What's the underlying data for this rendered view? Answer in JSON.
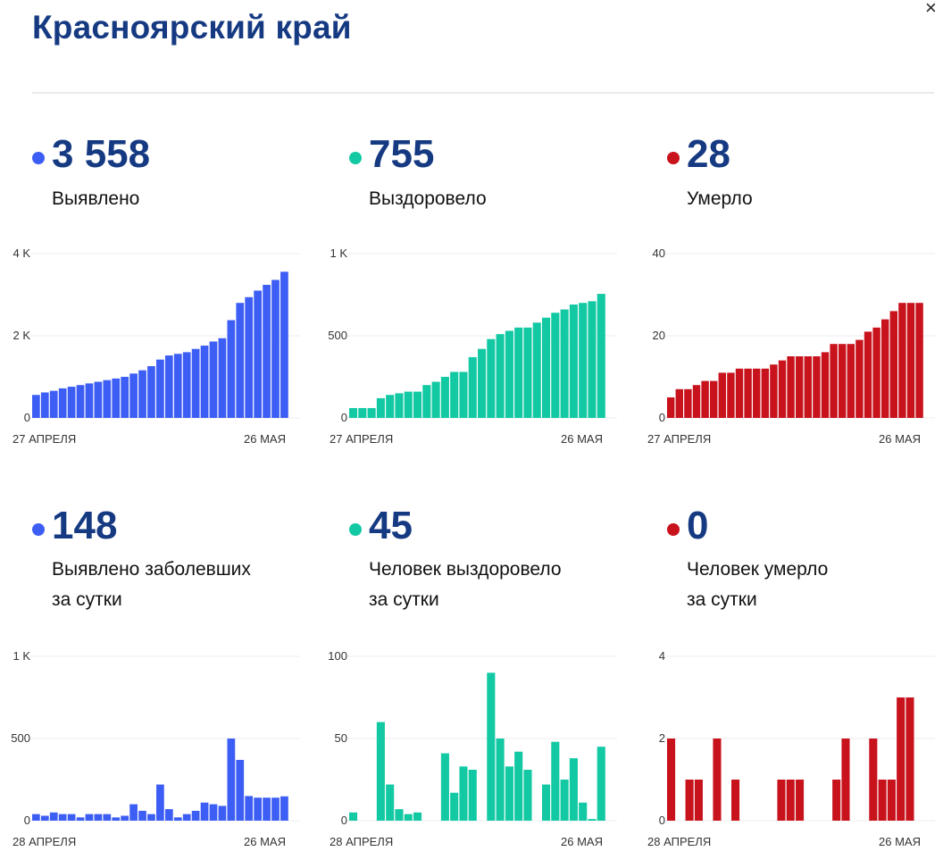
{
  "page": {
    "title": "Красноярский край",
    "close_glyph": "×"
  },
  "colors": {
    "blue": "#3d5ef5",
    "teal": "#12c9a4",
    "red": "#c8121c",
    "title": "#163a82"
  },
  "cards": [
    {
      "value": "3 558",
      "label": "Выявлено",
      "color": "#3d5ef5"
    },
    {
      "value": "755",
      "label": "Выздоровело",
      "color": "#12c9a4"
    },
    {
      "value": "28",
      "label": "Умерло",
      "color": "#c8121c"
    },
    {
      "value": "148",
      "label": "Выявлено заболевших\nза сутки",
      "color": "#3d5ef5"
    },
    {
      "value": "45",
      "label": "Человек выздоровело\nза сутки",
      "color": "#12c9a4"
    },
    {
      "value": "0",
      "label": "Человек умерло\nза сутки",
      "color": "#c8121c"
    }
  ],
  "chart_data": [
    {
      "type": "bar",
      "title": "Выявлено",
      "x_start": "27 АПРЕЛЯ",
      "x_end": "26 МАЯ",
      "ylim": [
        0,
        4000
      ],
      "yticks": [
        "0",
        "2 K",
        "4 K"
      ],
      "color": "#3d5ef5",
      "values": [
        560,
        620,
        660,
        720,
        760,
        800,
        840,
        880,
        920,
        960,
        1000,
        1080,
        1160,
        1260,
        1420,
        1520,
        1560,
        1600,
        1680,
        1760,
        1860,
        1940,
        2380,
        2800,
        2940,
        3100,
        3240,
        3360,
        3558
      ]
    },
    {
      "type": "bar",
      "title": "Выздоровело",
      "x_start": "27 АПРЕЛЯ",
      "x_end": "26 МАЯ",
      "ylim": [
        0,
        1000
      ],
      "yticks": [
        "0",
        "500",
        "1 K"
      ],
      "color": "#12c9a4",
      "values": [
        60,
        60,
        60,
        120,
        140,
        150,
        160,
        160,
        200,
        220,
        250,
        280,
        280,
        370,
        420,
        480,
        510,
        530,
        550,
        550,
        580,
        610,
        640,
        660,
        690,
        700,
        710,
        755
      ]
    },
    {
      "type": "bar",
      "title": "Умерло",
      "x_start": "27 АПРЕЛЯ",
      "x_end": "26 МАЯ",
      "ylim": [
        0,
        40
      ],
      "yticks": [
        "0",
        "20",
        "40"
      ],
      "color": "#c8121c",
      "values": [
        5,
        7,
        7,
        8,
        9,
        9,
        11,
        11,
        12,
        12,
        12,
        12,
        13,
        14,
        15,
        15,
        15,
        15,
        16,
        18,
        18,
        18,
        19,
        21,
        22,
        24,
        26,
        28,
        28,
        28
      ]
    },
    {
      "type": "bar",
      "title": "Выявлено заболевших за сутки",
      "x_start": "28 АПРЕЛЯ",
      "x_end": "26 МАЯ",
      "ylim": [
        0,
        1000
      ],
      "yticks": [
        "0",
        "500",
        "1 K"
      ],
      "color": "#3d5ef5",
      "values": [
        40,
        30,
        50,
        40,
        40,
        20,
        40,
        40,
        40,
        20,
        30,
        100,
        60,
        40,
        220,
        70,
        20,
        40,
        60,
        110,
        100,
        90,
        500,
        370,
        150,
        140,
        140,
        140,
        148
      ]
    },
    {
      "type": "bar",
      "title": "Человек выздоровело за сутки",
      "x_start": "28 АПРЕЛЯ",
      "x_end": "26 МАЯ",
      "ylim": [
        0,
        100
      ],
      "yticks": [
        "0",
        "50",
        "100"
      ],
      "color": "#12c9a4",
      "values": [
        5,
        0,
        0,
        60,
        22,
        7,
        4,
        5,
        0,
        0,
        41,
        17,
        33,
        31,
        0,
        90,
        50,
        33,
        42,
        31,
        0,
        22,
        48,
        25,
        38,
        11,
        1,
        45
      ]
    },
    {
      "type": "bar",
      "title": "Человек умерло за сутки",
      "x_start": "28 АПРЕЛЯ",
      "x_end": "26 МАЯ",
      "ylim": [
        0,
        4
      ],
      "yticks": [
        "0",
        "2",
        "4"
      ],
      "color": "#c8121c",
      "values": [
        2,
        0,
        1,
        1,
        0,
        2,
        0,
        1,
        0,
        0,
        0,
        0,
        1,
        1,
        1,
        0,
        0,
        0,
        1,
        2,
        0,
        0,
        2,
        1,
        1,
        3,
        3,
        0
      ]
    }
  ]
}
